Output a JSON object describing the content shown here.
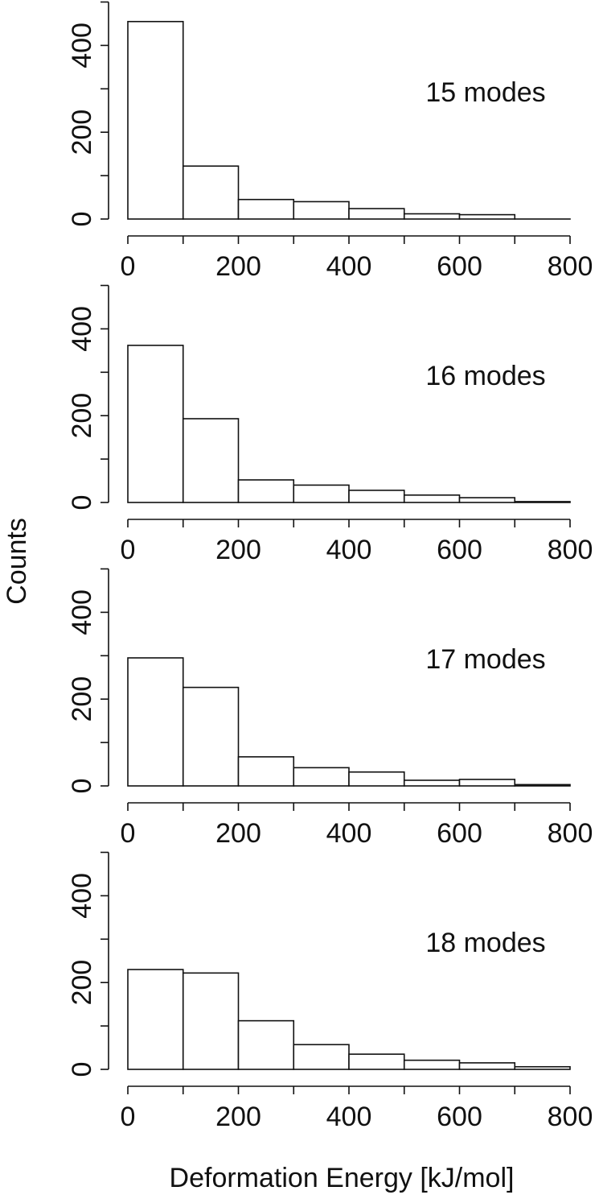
{
  "figure": {
    "ylabel": "Counts",
    "xlabel": "Deformation Energy [kJ/mol]"
  },
  "chart_data": [
    {
      "type": "bar",
      "annotation": "15 modes",
      "bin_edges": [
        0,
        100,
        200,
        300,
        400,
        500,
        600,
        700,
        800
      ],
      "values": [
        455,
        122,
        45,
        40,
        24,
        12,
        10,
        0
      ],
      "xlim": [
        0,
        800
      ],
      "ylim": [
        0,
        500
      ],
      "xticks": [
        "0",
        "200",
        "400",
        "600",
        "800"
      ],
      "yticks": [
        "0",
        "200",
        "400"
      ]
    },
    {
      "type": "bar",
      "annotation": "16 modes",
      "bin_edges": [
        0,
        100,
        200,
        300,
        400,
        500,
        600,
        700,
        800
      ],
      "values": [
        362,
        193,
        52,
        40,
        28,
        17,
        11,
        2
      ],
      "xlim": [
        0,
        800
      ],
      "ylim": [
        0,
        500
      ],
      "xticks": [
        "0",
        "200",
        "400",
        "600",
        "800"
      ],
      "yticks": [
        "0",
        "200",
        "400"
      ]
    },
    {
      "type": "bar",
      "annotation": "17 modes",
      "bin_edges": [
        0,
        100,
        200,
        300,
        400,
        500,
        600,
        700,
        800
      ],
      "values": [
        295,
        227,
        67,
        42,
        32,
        13,
        15,
        3
      ],
      "xlim": [
        0,
        800
      ],
      "ylim": [
        0,
        500
      ],
      "xticks": [
        "0",
        "200",
        "400",
        "600",
        "800"
      ],
      "yticks": [
        "0",
        "200",
        "400"
      ]
    },
    {
      "type": "bar",
      "annotation": "18 modes",
      "bin_edges": [
        0,
        100,
        200,
        300,
        400,
        500,
        600,
        700,
        800
      ],
      "values": [
        230,
        222,
        112,
        57,
        35,
        21,
        15,
        6
      ],
      "xlim": [
        0,
        800
      ],
      "ylim": [
        0,
        500
      ],
      "xticks": [
        "0",
        "200",
        "400",
        "600",
        "800"
      ],
      "yticks": [
        "0",
        "200",
        "400"
      ]
    }
  ]
}
